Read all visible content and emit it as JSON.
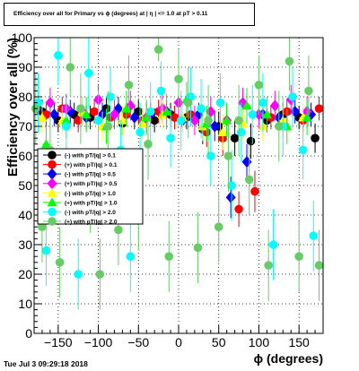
{
  "chart_data": {
    "type": "scatter",
    "title": "Efficiency over all for Primary vs ϕ (degrees) at |  η  | <= 1.0 at pT > 0.11",
    "xlabel": "ϕ (degrees)",
    "ylabel": "Efficiency over all (%)",
    "xlim": [
      -180,
      180
    ],
    "ylim": [
      0,
      100
    ],
    "xticks": [
      "-150",
      "-100",
      "-50",
      "0",
      "50",
      "100",
      "150"
    ],
    "yticks": [
      "0",
      "10",
      "20",
      "30",
      "40",
      "50",
      "60",
      "70",
      "80",
      "90",
      "100"
    ],
    "grid": true,
    "error_bars": true,
    "legend": {
      "placement": "left-middle",
      "entries": [
        "(-) with pT/|q| > 0.1",
        "(+) with pT/|q| > 0.1",
        "(-) with pT/|q| > 0.5",
        "(+) with pT/|q| > 0.5",
        "(-) with pT/|q| > 1.0",
        "(+) with pT/|q| > 1.0",
        "(-) with pT/|q| > 2.0",
        "(+) with pT/|q| > 2.0"
      ]
    },
    "series": [
      {
        "color": "#000000",
        "marker": "circle",
        "x": [
          -170,
          -150,
          -130,
          -110,
          -90,
          -70,
          -50,
          -30,
          -10,
          10,
          30,
          50,
          70,
          90,
          110,
          130,
          150,
          170
        ],
        "y": [
          75,
          72,
          74,
          73,
          76,
          71,
          75,
          72,
          74,
          73,
          69,
          70,
          66,
          65,
          72,
          74,
          73,
          66
        ],
        "err": [
          4,
          4,
          4,
          4,
          4,
          4,
          4,
          4,
          4,
          4,
          5,
          5,
          6,
          6,
          4,
          4,
          4,
          5
        ]
      },
      {
        "color": "#ff0000",
        "marker": "circle",
        "x": [
          -165,
          -145,
          -125,
          -105,
          -85,
          -65,
          -45,
          -25,
          -5,
          15,
          35,
          55,
          75,
          95,
          115,
          135,
          155,
          175
        ],
        "y": [
          74,
          76,
          72,
          75,
          73,
          74,
          72,
          75,
          73,
          74,
          68,
          66,
          42,
          48,
          73,
          75,
          72,
          76
        ],
        "err": [
          4,
          4,
          4,
          4,
          4,
          4,
          4,
          4,
          4,
          4,
          5,
          6,
          6,
          7,
          4,
          4,
          4,
          4
        ]
      },
      {
        "color": "#0000ff",
        "marker": "diamond",
        "x": [
          -175,
          -155,
          -135,
          -115,
          -95,
          -75,
          -55,
          -35,
          -15,
          5,
          25,
          45,
          65,
          85,
          105,
          125,
          145,
          165
        ],
        "y": [
          76,
          74,
          75,
          73,
          74,
          76,
          73,
          74,
          75,
          72,
          74,
          70,
          46,
          58,
          74,
          73,
          75,
          74
        ],
        "err": [
          4,
          4,
          4,
          4,
          4,
          4,
          4,
          4,
          4,
          4,
          4,
          5,
          7,
          6,
          4,
          4,
          4,
          4
        ]
      },
      {
        "color": "#ff00ff",
        "marker": "diamond",
        "x": [
          -160,
          -140,
          -120,
          -100,
          -80,
          -60,
          -40,
          -20,
          0,
          20,
          40,
          60,
          80,
          100,
          120,
          140,
          160
        ],
        "y": [
          78,
          76,
          75,
          79,
          74,
          77,
          73,
          76,
          78,
          72,
          75,
          72,
          78,
          74,
          77,
          79,
          75
        ],
        "err": [
          5,
          5,
          5,
          5,
          5,
          5,
          5,
          5,
          5,
          5,
          5,
          5,
          5,
          5,
          5,
          5,
          5
        ]
      },
      {
        "color": "#ffff00",
        "marker": "triangle",
        "x": [
          -170,
          -145,
          -120,
          -95,
          -70,
          -45,
          -20,
          5,
          30,
          55,
          80,
          105,
          130,
          155
        ],
        "y": [
          73,
          72,
          75,
          70,
          72,
          71,
          74,
          73,
          70,
          68,
          71,
          70,
          72,
          73
        ],
        "err": [
          5,
          5,
          5,
          5,
          5,
          5,
          5,
          5,
          5,
          6,
          5,
          5,
          5,
          5
        ]
      },
      {
        "color": "#00ff00",
        "marker": "triangle",
        "x": [
          -165,
          -140,
          -115,
          -90,
          -65,
          -40,
          -15,
          10,
          35,
          60,
          85,
          110,
          135,
          160
        ],
        "y": [
          64,
          72,
          74,
          70,
          76,
          73,
          75,
          79,
          71,
          72,
          77,
          74,
          70,
          73
        ],
        "err": [
          6,
          6,
          6,
          6,
          6,
          6,
          6,
          6,
          6,
          6,
          6,
          6,
          6,
          6
        ]
      },
      {
        "color": "#00ffff",
        "marker": "circle",
        "x": [
          -175,
          -165,
          -150,
          -140,
          -125,
          -112,
          -100,
          -85,
          -72,
          -60,
          -48,
          -35,
          -22,
          -10,
          3,
          15,
          28,
          40,
          52,
          66,
          78,
          92,
          105,
          118,
          130,
          142,
          155,
          168
        ],
        "y": [
          78,
          28,
          94,
          70,
          20,
          88,
          72,
          80,
          62,
          26,
          68,
          75,
          82,
          66,
          72,
          80,
          76,
          60,
          78,
          50,
          68,
          74,
          78,
          30,
          70,
          80,
          62,
          33
        ],
        "err": [
          10,
          12,
          10,
          10,
          12,
          12,
          10,
          10,
          10,
          12,
          10,
          10,
          10,
          10,
          10,
          10,
          10,
          10,
          10,
          12,
          10,
          10,
          10,
          12,
          10,
          10,
          10,
          12
        ]
      },
      {
        "color": "#66cc66",
        "marker": "circle",
        "x": [
          -178,
          -170,
          -160,
          -148,
          -135,
          -122,
          -110,
          -98,
          -88,
          -75,
          -62,
          -50,
          -38,
          -25,
          -12,
          0,
          12,
          24,
          37,
          50,
          62,
          75,
          88,
          100,
          112,
          125,
          138,
          150,
          162,
          175
        ],
        "y": [
          76,
          36,
          62,
          24,
          90,
          76,
          46,
          20,
          70,
          35,
          84,
          40,
          64,
          96,
          26,
          86,
          78,
          29,
          72,
          36,
          60,
          72,
          52,
          84,
          23,
          70,
          92,
          26,
          82,
          23
        ],
        "err": [
          12,
          12,
          12,
          12,
          10,
          12,
          12,
          12,
          12,
          12,
          10,
          12,
          12,
          4,
          12,
          10,
          12,
          12,
          12,
          12,
          12,
          12,
          12,
          10,
          12,
          12,
          10,
          12,
          12,
          12
        ]
      }
    ]
  },
  "footer": {
    "datestamp": "Tue Jul  3 09:29:18 2018"
  }
}
